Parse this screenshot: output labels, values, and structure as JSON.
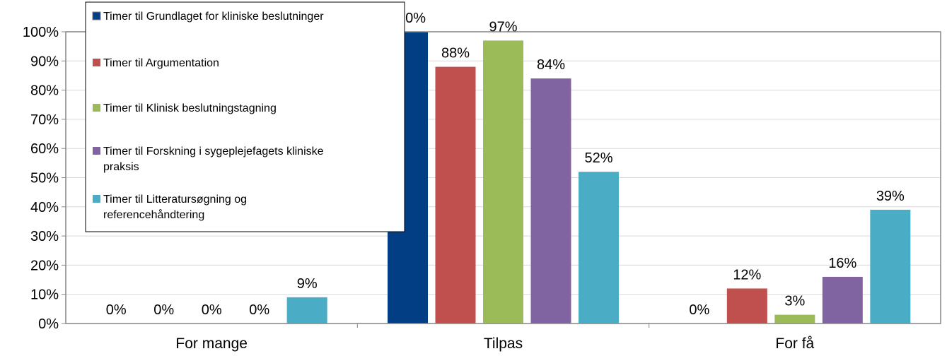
{
  "chart_data": {
    "type": "bar",
    "categories": [
      "For mange",
      "Tilpas",
      "For få"
    ],
    "series": [
      {
        "name": "Timer til Grundlaget for kliniske beslutninger",
        "color": "#023E84",
        "values": [
          0,
          100,
          0
        ]
      },
      {
        "name": "Timer til Argumentation",
        "color": "#C0504D",
        "values": [
          0,
          88,
          12
        ]
      },
      {
        "name": "Timer til Klinisk beslutningstagning",
        "color": "#9BBB59",
        "values": [
          0,
          97,
          3
        ]
      },
      {
        "name": "Timer til Forskning i sygeplejefagets kliniske praksis",
        "color": "#8064A2",
        "values": [
          0,
          84,
          16
        ]
      },
      {
        "name": "Timer til Litteratursøgning og referencehåndtering",
        "color": "#4BACC6",
        "values": [
          9,
          52,
          39
        ]
      }
    ],
    "ylim": [
      0,
      100
    ],
    "yticks": [
      "0%",
      "10%",
      "20%",
      "30%",
      "40%",
      "50%",
      "60%",
      "70%",
      "80%",
      "90%",
      "100%"
    ],
    "value_suffix": "%",
    "grid": true,
    "legend_position": "top-left"
  }
}
